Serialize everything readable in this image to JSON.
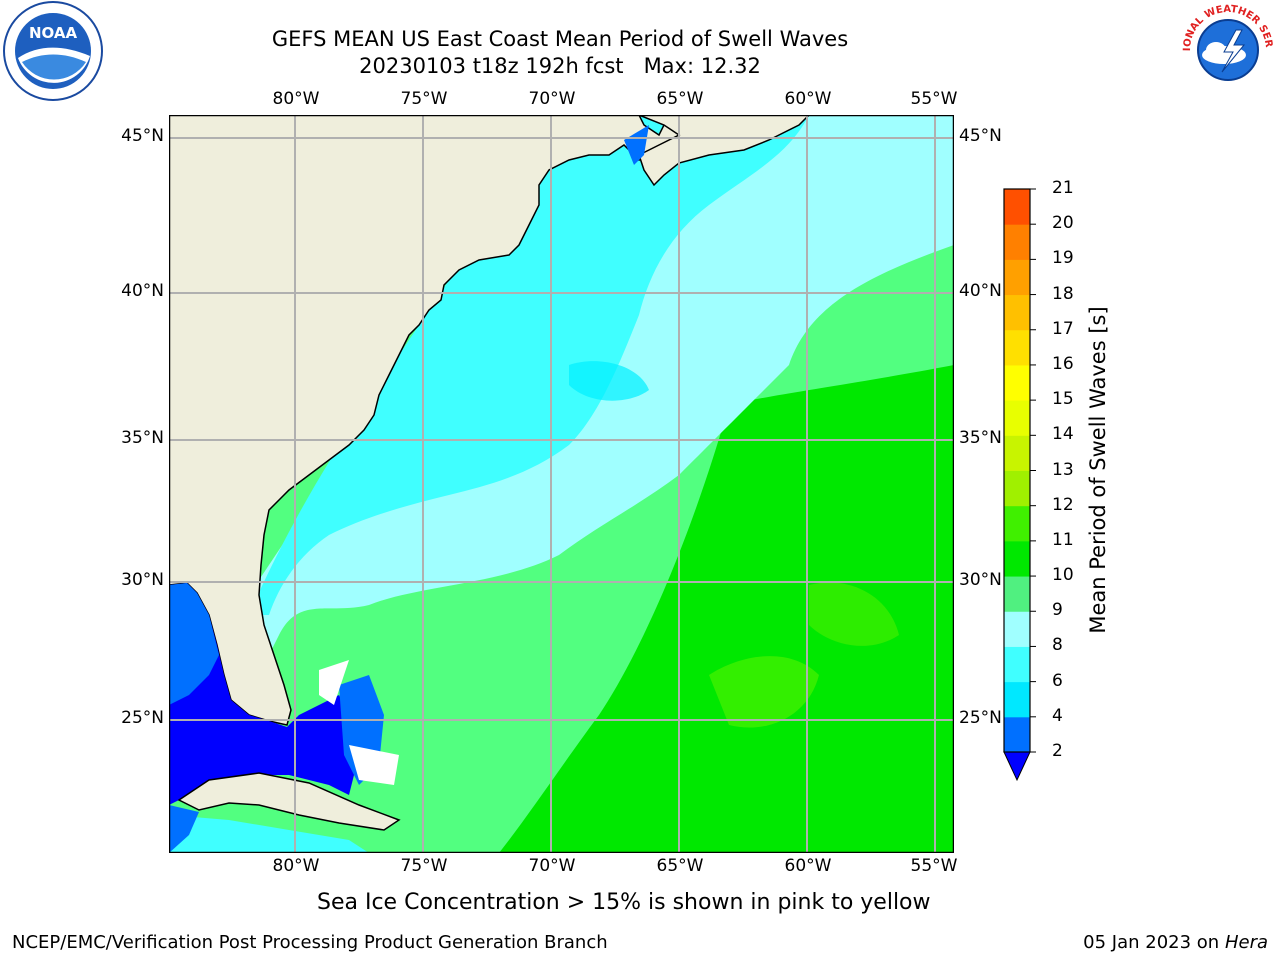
{
  "title_line1": "GEFS MEAN US East Coast Mean Period of Swell Waves",
  "title_line2": "20230103 t18z 192h fcst   Max: 12.32",
  "logos": {
    "left": "noaa-logo",
    "left_text": "NOAA",
    "right": "nws-logo",
    "right_text": "NATIONAL WEATHER SERVICE"
  },
  "lon_labels": [
    "80°W",
    "75°W",
    "70°W",
    "65°W",
    "60°W",
    "55°W"
  ],
  "lat_labels": [
    "45°N",
    "40°N",
    "35°N",
    "30°N",
    "25°N"
  ],
  "colorbar": {
    "title": "Mean Period of Swell Waves [s]",
    "ticks": [
      "2",
      "4",
      "6",
      "8",
      "9",
      "10",
      "11",
      "12",
      "13",
      "14",
      "15",
      "16",
      "17",
      "18",
      "19",
      "20",
      "21"
    ],
    "colors": [
      "#0070ff",
      "#00e8ff",
      "#40ffff",
      "#a0ffff",
      "#50f080",
      "#00e800",
      "#40f000",
      "#a0f000",
      "#c8f400",
      "#e8ff00",
      "#ffff00",
      "#ffe000",
      "#ffc000",
      "#ffa000",
      "#ff8000",
      "#ff5000",
      "#ff2000",
      "#ff0000"
    ],
    "under_color": "#0000ff"
  },
  "note": "Sea Ice Concentration > 15% is shown in pink to yellow",
  "footer_left": "NCEP/EMC/Verification Post Processing Product Generation Branch",
  "footer_right_date": "05 Jan 2023 on ",
  "footer_right_host": "Hera"
}
